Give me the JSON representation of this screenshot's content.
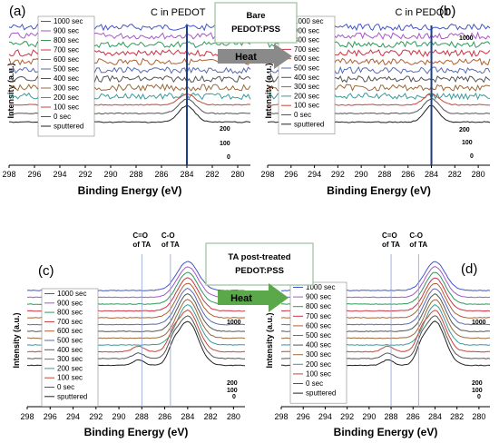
{
  "legend_labels": [
    "1000 sec",
    "900 sec",
    "800 sec",
    "700 sec",
    "600 sec",
    "500 sec",
    "400 sec",
    "300 sec",
    "200 sec",
    "100 sec",
    "0 sec",
    "sputtered"
  ],
  "series_colors": [
    "#4455cc",
    "#aa55cc",
    "#2e9a5a",
    "#cc3344",
    "#b06030",
    "#5a6bb0",
    "#555555",
    "#9a6a3a",
    "#3a9a9a",
    "#cc4433",
    "#555555",
    "#222222"
  ],
  "heat": {
    "label": "Heat",
    "color_top": "#8a8a8a",
    "color_bottom": "#5aa84a"
  },
  "boxes": {
    "top": "Bare\nPEDOT:PSS",
    "bottom": "TA post-treated\nPEDOT:PSS"
  },
  "chart_data": [
    {
      "id": "a",
      "type": "line",
      "panel_label": "(a)",
      "annotation": "C in PEDOT",
      "xlabel": "Binding Energy (eV)",
      "ylabel": "Intensity (a.u.)",
      "x_ticks": [
        298,
        296,
        294,
        292,
        290,
        288,
        286,
        284,
        282,
        280
      ],
      "xlim": [
        298,
        279
      ],
      "marker_line": 284,
      "right_labels": [
        "200",
        "100",
        "0"
      ],
      "peak_series": [
        "200 sec",
        "100 sec",
        "0 sec"
      ],
      "series": [
        "1000 sec",
        "900 sec",
        "800 sec",
        "700 sec",
        "600 sec",
        "500 sec",
        "400 sec",
        "300 sec",
        "200 sec",
        "100 sec",
        "0 sec",
        "sputtered"
      ]
    },
    {
      "id": "b",
      "type": "line",
      "panel_label": "(b)",
      "annotation": "C in PEDOT",
      "xlabel": "Binding Energy (eV)",
      "ylabel": "Intensity (a.u.)",
      "x_ticks": [
        298,
        296,
        294,
        292,
        290,
        288,
        286,
        284,
        282,
        280
      ],
      "xlim": [
        298,
        279
      ],
      "marker_line": 284,
      "right_labels": [
        "1000",
        "200",
        "100",
        "0"
      ],
      "series": [
        "1000 sec",
        "900 sec",
        "800 sec",
        "700 sec",
        "600 sec",
        "500 sec",
        "400 sec",
        "300 sec",
        "200 sec",
        "100 sec",
        "0 sec",
        "sputtered"
      ]
    },
    {
      "id": "c",
      "type": "line",
      "panel_label": "(c)",
      "annotations": [
        "C=O\nof TA",
        "C-O\nof TA"
      ],
      "annotation_positions": [
        288,
        285.5
      ],
      "xlabel": "Binding Energy (eV)",
      "ylabel": "Intensity (a.u.)",
      "x_ticks": [
        298,
        296,
        294,
        292,
        290,
        288,
        286,
        284,
        282,
        280
      ],
      "xlim": [
        298,
        279
      ],
      "peak_position": 284,
      "right_labels": [
        "1000",
        "200",
        "100",
        "0"
      ],
      "series": [
        "1000 sec",
        "900 sec",
        "800 sec",
        "700 sec",
        "600 sec",
        "500 sec",
        "400 sec",
        "300 sec",
        "200 sec",
        "100 sec",
        "0 sec",
        "sputtered"
      ]
    },
    {
      "id": "d",
      "type": "line",
      "panel_label": "(d)",
      "annotations": [
        "C=O\nof TA",
        "C-O\nof TA"
      ],
      "annotation_positions": [
        288,
        285.5
      ],
      "xlabel": "Binding Energy (eV)",
      "ylabel": "Intensity (a.u.)",
      "x_ticks": [
        298,
        296,
        294,
        292,
        290,
        288,
        286,
        284,
        282,
        280
      ],
      "xlim": [
        298,
        279
      ],
      "peak_position": 284,
      "right_labels": [
        "1000",
        "200",
        "100",
        "0"
      ],
      "series": [
        "1000 sec",
        "900 sec",
        "800 sec",
        "700 sec",
        "600 sec",
        "500 sec",
        "400 sec",
        "300 sec",
        "200 sec",
        "100 sec",
        "0 sec",
        "sputtered"
      ]
    }
  ]
}
